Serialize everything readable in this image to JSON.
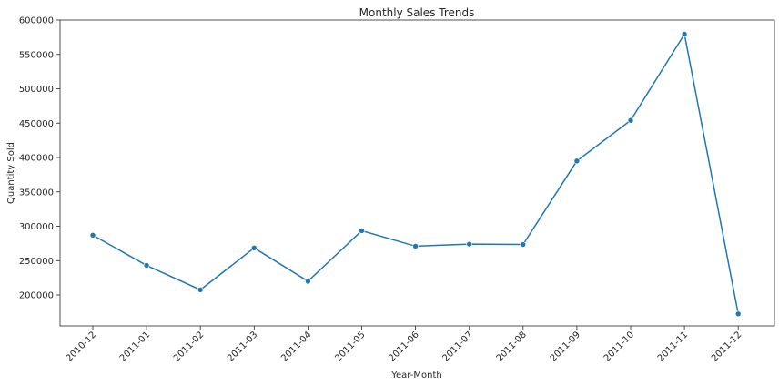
{
  "chart_data": {
    "type": "line",
    "title": "Monthly Sales Trends",
    "xlabel": "Year-Month",
    "ylabel": "Quantity Sold",
    "categories": [
      "2010-12",
      "2011-01",
      "2011-02",
      "2011-03",
      "2011-04",
      "2011-05",
      "2011-06",
      "2011-07",
      "2011-08",
      "2011-09",
      "2011-10",
      "2011-11",
      "2011-12"
    ],
    "series": [
      {
        "values": [
          287000,
          243000,
          207500,
          268500,
          220000,
          293500,
          271000,
          274000,
          273500,
          395000,
          454000,
          579500,
          172500
        ],
        "color": "#1f77b4"
      }
    ],
    "ylim": [
      155000,
      600000
    ],
    "yticks": [
      200000,
      250000,
      300000,
      350000,
      400000,
      450000,
      500000,
      550000,
      600000
    ],
    "ytick_labels": [
      "200000",
      "250000",
      "300000",
      "350000",
      "400000",
      "450000",
      "500000",
      "550000",
      "600000"
    ],
    "grid": false,
    "marker": "circle"
  }
}
